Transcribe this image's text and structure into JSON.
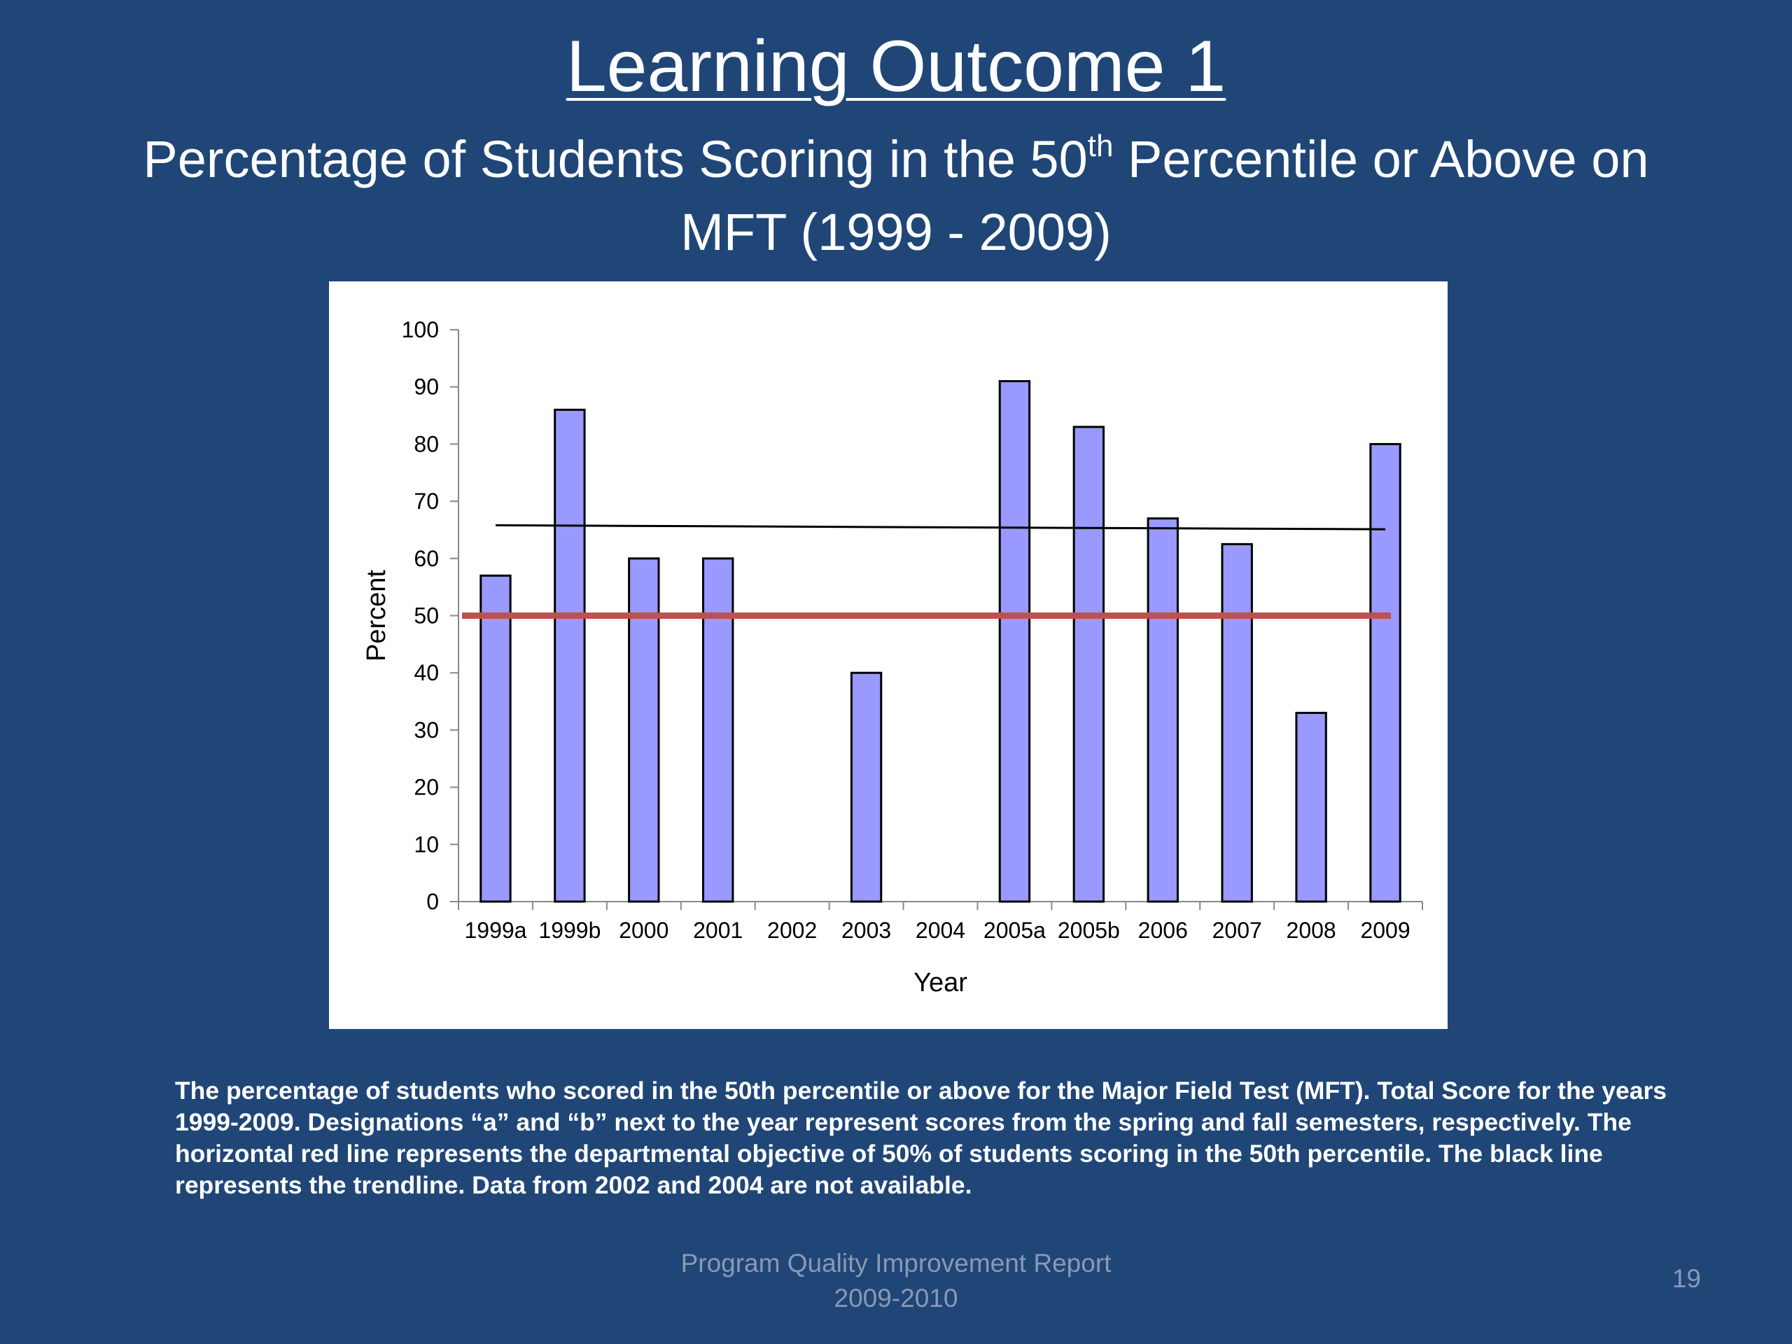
{
  "slide": {
    "title": "Learning Outcome 1",
    "subtitle_part1": "Percentage of Students Scoring in the 50",
    "subtitle_sup": "th",
    "subtitle_part2": " Percentile or Above on MFT (1999 - 2009)",
    "caption": "The percentage of students who scored in the 50th percentile or above for the Major Field Test (MFT). Total Score for the years 1999-2009.  Designations “a” and “b” next to the year represent scores from the spring and fall semesters, respectively.  The horizontal red line represents the departmental objective of 50% of students scoring in the 50th percentile.  The black line represents the trendline. Data from 2002 and 2004 are not available.",
    "footer_line1": "Program Quality Improvement Report",
    "footer_line2": "2009-2010",
    "page_number": "19"
  },
  "chart_data": {
    "type": "bar",
    "categories": [
      "1999a",
      "1999b",
      "2000",
      "2001",
      "2002",
      "2003",
      "2004",
      "2005a",
      "2005b",
      "2006",
      "2007",
      "2008",
      "2009"
    ],
    "values": [
      57,
      86,
      60,
      60,
      null,
      40,
      null,
      91,
      83,
      67,
      62.5,
      33,
      80
    ],
    "xlabel": "Year",
    "ylabel": "Percent",
    "ylim": [
      0,
      100
    ],
    "yticks": [
      0,
      10,
      20,
      30,
      40,
      50,
      60,
      70,
      80,
      90,
      100
    ],
    "grid": false,
    "bar_color": "#9999ff",
    "reference_line": {
      "value": 50,
      "color": "#c0504d"
    },
    "trendline": {
      "start": 65.8,
      "end": 65.1,
      "color": "#000000"
    }
  }
}
